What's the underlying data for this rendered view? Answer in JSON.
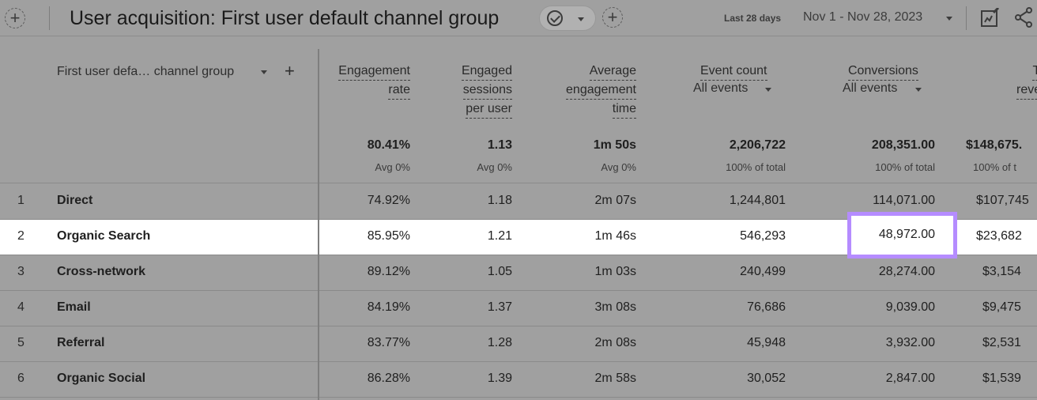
{
  "header": {
    "title": "User acquisition: First user default channel group",
    "date_label": "Last 28 days",
    "date_value": "Nov 1 - Nov 28, 2023"
  },
  "table": {
    "dimension_header": "First user defa… channel group",
    "columns": [
      {
        "lines": [
          "Engagement",
          "rate"
        ],
        "sub": "",
        "total": "80.41%",
        "total_sub": "Avg 0%"
      },
      {
        "lines": [
          "Engaged",
          "sessions",
          "per user"
        ],
        "sub": "",
        "total": "1.13",
        "total_sub": "Avg 0%"
      },
      {
        "lines": [
          "Average",
          "engagement",
          "time"
        ],
        "sub": "",
        "total": "1m 50s",
        "total_sub": "Avg 0%"
      },
      {
        "lines": [
          "Event count"
        ],
        "sub": "All events",
        "total": "2,206,722",
        "total_sub": "100% of total"
      },
      {
        "lines": [
          "Conversions"
        ],
        "sub": "All events",
        "total": "208,351.00",
        "total_sub": "100% of total"
      },
      {
        "lines": [
          "Tc",
          "rever"
        ],
        "sub": "",
        "total": "$148,675.",
        "total_sub": "100% of t"
      }
    ],
    "rows": [
      {
        "idx": "1",
        "name": "Direct",
        "values": [
          "74.92%",
          "1.18",
          "2m 07s",
          "1,244,801",
          "114,071.00",
          "$107,745"
        ]
      },
      {
        "idx": "2",
        "name": "Organic Search",
        "values": [
          "85.95%",
          "1.21",
          "1m 46s",
          "546,293",
          "48,972.00",
          "$23,682"
        ]
      },
      {
        "idx": "3",
        "name": "Cross-network",
        "values": [
          "89.12%",
          "1.05",
          "1m 03s",
          "240,499",
          "28,274.00",
          "$3,154"
        ]
      },
      {
        "idx": "4",
        "name": "Email",
        "values": [
          "84.19%",
          "1.37",
          "3m 08s",
          "76,686",
          "9,039.00",
          "$9,475"
        ]
      },
      {
        "idx": "5",
        "name": "Referral",
        "values": [
          "83.77%",
          "1.28",
          "2m 08s",
          "45,948",
          "3,932.00",
          "$2,531"
        ]
      },
      {
        "idx": "6",
        "name": "Organic Social",
        "values": [
          "86.28%",
          "1.39",
          "2m 58s",
          "30,052",
          "2,847.00",
          "$1,539"
        ]
      }
    ]
  },
  "colors": {
    "highlight_border": "#b58cff",
    "highlight_row": "#ffffff",
    "overlay_grey": "#a0a0a0"
  },
  "icons": [
    "add-circle-icon",
    "check-circle-icon",
    "chevron-down-icon",
    "customize-report-icon",
    "share-icon",
    "plus-icon"
  ]
}
